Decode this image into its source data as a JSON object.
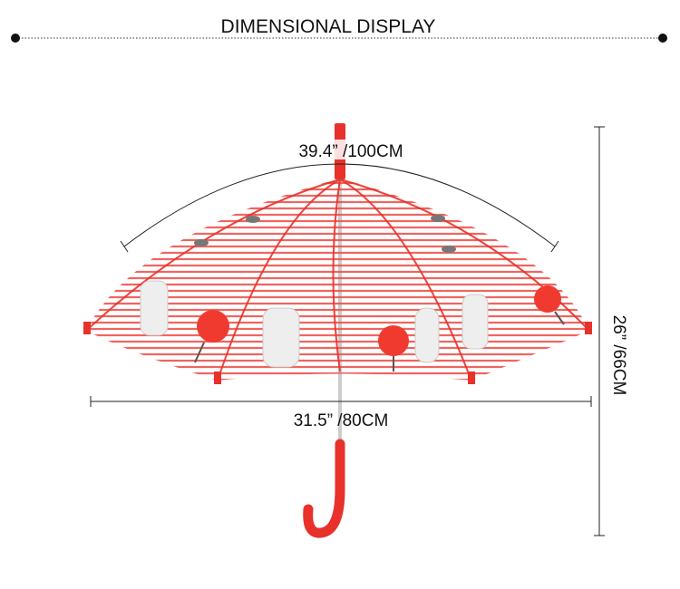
{
  "title": "DIMENSIONAL DISPLAY",
  "dimensions": {
    "arc": "39.4”  /100CM",
    "width": "31.5”  /80CM",
    "height": "26”  /66CM"
  }
}
